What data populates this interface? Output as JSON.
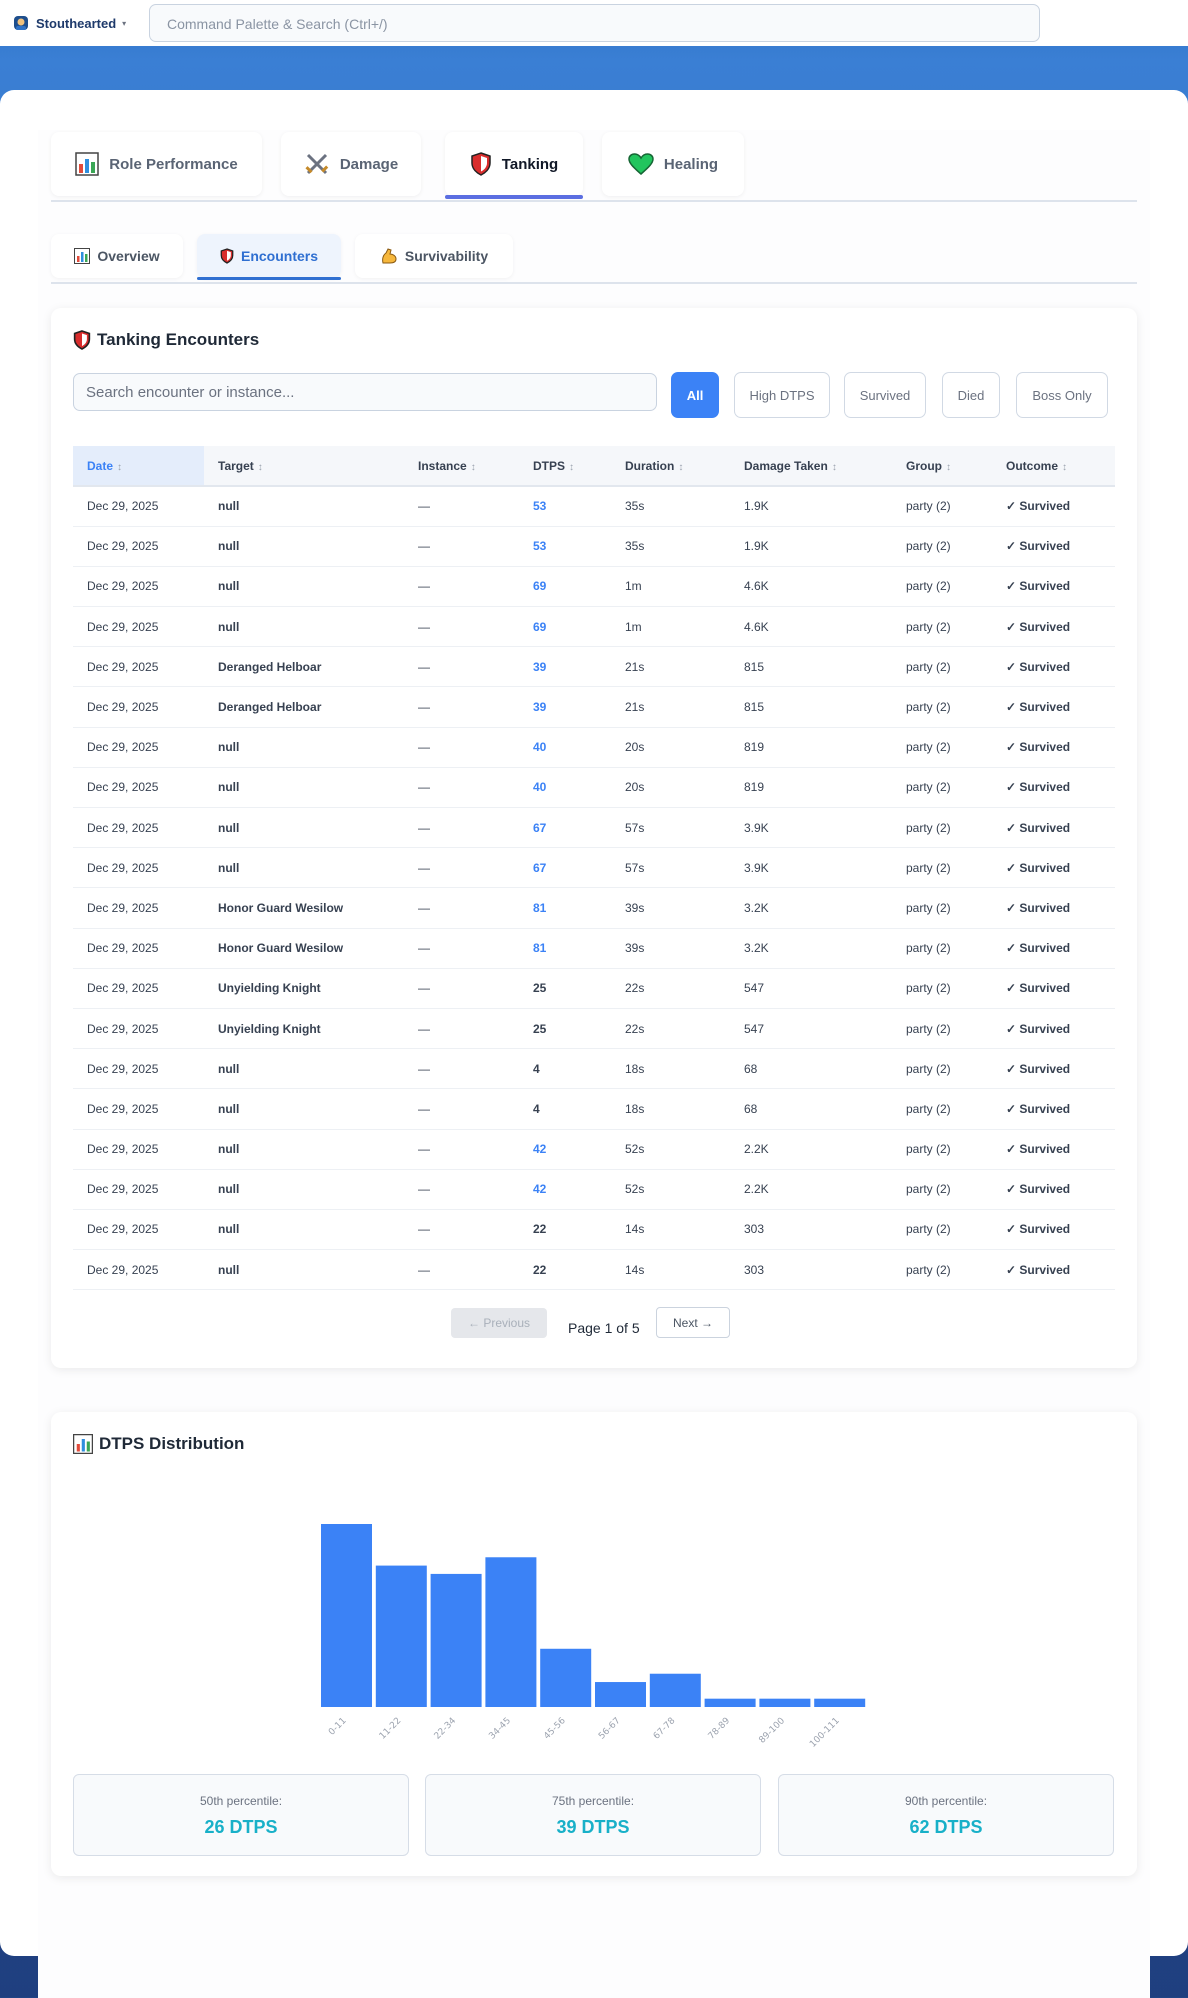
{
  "topbar": {
    "brand": "Stouthearted",
    "caret": "▾",
    "search_placeholder": "Command Palette & Search (Ctrl+/)"
  },
  "role_tabs": [
    {
      "label": "Role Performance",
      "icon": "bar-chart-icon"
    },
    {
      "label": "Damage",
      "icon": "crossed-swords-icon"
    },
    {
      "label": "Tanking",
      "icon": "shield-icon",
      "active": true
    },
    {
      "label": "Healing",
      "icon": "heart-icon"
    }
  ],
  "sub_tabs": [
    {
      "label": "Overview",
      "icon": "bar-chart-icon"
    },
    {
      "label": "Encounters",
      "icon": "shield-icon",
      "active": true
    },
    {
      "label": "Survivability",
      "icon": "flexed-arm-icon"
    }
  ],
  "encounters": {
    "title": "Tanking Encounters",
    "search_placeholder": "Search encounter or instance...",
    "filters": [
      "All",
      "High DTPS",
      "Survived",
      "Died",
      "Boss Only"
    ],
    "columns": [
      "Date",
      "Target",
      "Instance",
      "DTPS",
      "Duration",
      "Damage Taken",
      "Group",
      "Outcome"
    ],
    "sort_glyph": "↕",
    "rows": [
      {
        "date": "Dec 29, 2025",
        "target": "null",
        "instance": "—",
        "dtps": "53",
        "duration": "35s",
        "damage": "1.9K",
        "group": "party (2)",
        "outcome": "✓ Survived"
      },
      {
        "date": "Dec 29, 2025",
        "target": "null",
        "instance": "—",
        "dtps": "53",
        "duration": "35s",
        "damage": "1.9K",
        "group": "party (2)",
        "outcome": "✓ Survived"
      },
      {
        "date": "Dec 29, 2025",
        "target": "null",
        "instance": "—",
        "dtps": "69",
        "duration": "1m",
        "damage": "4.6K",
        "group": "party (2)",
        "outcome": "✓ Survived"
      },
      {
        "date": "Dec 29, 2025",
        "target": "null",
        "instance": "—",
        "dtps": "69",
        "duration": "1m",
        "damage": "4.6K",
        "group": "party (2)",
        "outcome": "✓ Survived"
      },
      {
        "date": "Dec 29, 2025",
        "target": "Deranged Helboar",
        "instance": "—",
        "dtps": "39",
        "duration": "21s",
        "damage": "815",
        "group": "party (2)",
        "outcome": "✓ Survived"
      },
      {
        "date": "Dec 29, 2025",
        "target": "Deranged Helboar",
        "instance": "—",
        "dtps": "39",
        "duration": "21s",
        "damage": "815",
        "group": "party (2)",
        "outcome": "✓ Survived"
      },
      {
        "date": "Dec 29, 2025",
        "target": "null",
        "instance": "—",
        "dtps": "40",
        "duration": "20s",
        "damage": "819",
        "group": "party (2)",
        "outcome": "✓ Survived"
      },
      {
        "date": "Dec 29, 2025",
        "target": "null",
        "instance": "—",
        "dtps": "40",
        "duration": "20s",
        "damage": "819",
        "group": "party (2)",
        "outcome": "✓ Survived"
      },
      {
        "date": "Dec 29, 2025",
        "target": "null",
        "instance": "—",
        "dtps": "67",
        "duration": "57s",
        "damage": "3.9K",
        "group": "party (2)",
        "outcome": "✓ Survived"
      },
      {
        "date": "Dec 29, 2025",
        "target": "null",
        "instance": "—",
        "dtps": "67",
        "duration": "57s",
        "damage": "3.9K",
        "group": "party (2)",
        "outcome": "✓ Survived"
      },
      {
        "date": "Dec 29, 2025",
        "target": "Honor Guard Wesilow",
        "instance": "—",
        "dtps": "81",
        "duration": "39s",
        "damage": "3.2K",
        "group": "party (2)",
        "outcome": "✓ Survived"
      },
      {
        "date": "Dec 29, 2025",
        "target": "Honor Guard Wesilow",
        "instance": "—",
        "dtps": "81",
        "duration": "39s",
        "damage": "3.2K",
        "group": "party (2)",
        "outcome": "✓ Survived"
      },
      {
        "date": "Dec 29, 2025",
        "target": "Unyielding Knight",
        "instance": "—",
        "dtps": "25",
        "duration": "22s",
        "damage": "547",
        "group": "party (2)",
        "outcome": "✓ Survived"
      },
      {
        "date": "Dec 29, 2025",
        "target": "Unyielding Knight",
        "instance": "—",
        "dtps": "25",
        "duration": "22s",
        "damage": "547",
        "group": "party (2)",
        "outcome": "✓ Survived"
      },
      {
        "date": "Dec 29, 2025",
        "target": "null",
        "instance": "—",
        "dtps": "4",
        "duration": "18s",
        "damage": "68",
        "group": "party (2)",
        "outcome": "✓ Survived"
      },
      {
        "date": "Dec 29, 2025",
        "target": "null",
        "instance": "—",
        "dtps": "4",
        "duration": "18s",
        "damage": "68",
        "group": "party (2)",
        "outcome": "✓ Survived"
      },
      {
        "date": "Dec 29, 2025",
        "target": "null",
        "instance": "—",
        "dtps": "42",
        "duration": "52s",
        "damage": "2.2K",
        "group": "party (2)",
        "outcome": "✓ Survived"
      },
      {
        "date": "Dec 29, 2025",
        "target": "null",
        "instance": "—",
        "dtps": "42",
        "duration": "52s",
        "damage": "2.2K",
        "group": "party (2)",
        "outcome": "✓ Survived"
      },
      {
        "date": "Dec 29, 2025",
        "target": "null",
        "instance": "—",
        "dtps": "22",
        "duration": "14s",
        "damage": "303",
        "group": "party (2)",
        "outcome": "✓ Survived"
      },
      {
        "date": "Dec 29, 2025",
        "target": "null",
        "instance": "—",
        "dtps": "22",
        "duration": "14s",
        "damage": "303",
        "group": "party (2)",
        "outcome": "✓ Survived"
      }
    ],
    "pagination": {
      "prev_label": "← Previous",
      "page_text": "Page 1 of 5",
      "next_label": "Next →"
    }
  },
  "distribution": {
    "title": "DTPS Distribution",
    "percentiles": [
      {
        "label": "50th percentile:",
        "value": "26 DTPS"
      },
      {
        "label": "75th percentile:",
        "value": "39 DTPS"
      },
      {
        "label": "90th percentile:",
        "value": "62 DTPS"
      }
    ]
  },
  "chart_data": {
    "type": "bar",
    "title": "DTPS Distribution",
    "categories": [
      "0-11",
      "11-22",
      "22-34",
      "34-45",
      "45-56",
      "56-67",
      "67-78",
      "78-89",
      "89-100",
      "100-111"
    ],
    "values": [
      22,
      17,
      16,
      18,
      7,
      3,
      4,
      1,
      1,
      1
    ],
    "ylim": [
      0,
      22
    ],
    "grid": false,
    "xlabel": "",
    "ylabel": ""
  },
  "colors": {
    "accent": "#3b82f6",
    "bar": "#3b82f6",
    "survived": "#16a34a",
    "percentile": "#18b0c8",
    "header_bg": "#2f72c6"
  }
}
